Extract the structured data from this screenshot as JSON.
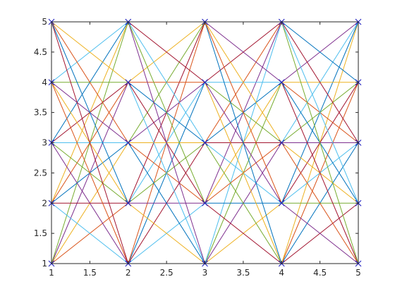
{
  "chart_data": {
    "type": "line",
    "title": "",
    "xlabel": "",
    "ylabel": "",
    "xlim": [
      1,
      5
    ],
    "ylim": [
      1,
      5
    ],
    "grid": false,
    "legend": "none",
    "x_ticks": [
      1,
      1.5,
      2,
      2.5,
      3,
      3.5,
      4,
      4.5,
      5
    ],
    "x_tick_labels": [
      "1",
      "1.5",
      "2",
      "2.5",
      "3",
      "3.5",
      "4",
      "4.5",
      "5"
    ],
    "y_ticks": [
      1,
      1.5,
      2,
      2.5,
      3,
      3.5,
      4,
      4.5,
      5
    ],
    "y_tick_labels": [
      "1",
      "1.5",
      "2",
      "2.5",
      "3",
      "3.5",
      "4",
      "4.5",
      "5"
    ],
    "description": "Every grid node (x,y) with x,y in 1..5 is connected by a straight line to every node in the adjacent x column; each node is marked with a blue x marker.",
    "nodes_x": [
      1,
      2,
      3,
      4,
      5
    ],
    "nodes_y": [
      1,
      2,
      3,
      4,
      5
    ],
    "marker_color": "#1f1fbf",
    "colors": [
      "#0072bd",
      "#d95319",
      "#edb120",
      "#7e2f8e",
      "#77ac30",
      "#4dbeee",
      "#a2142f"
    ]
  }
}
